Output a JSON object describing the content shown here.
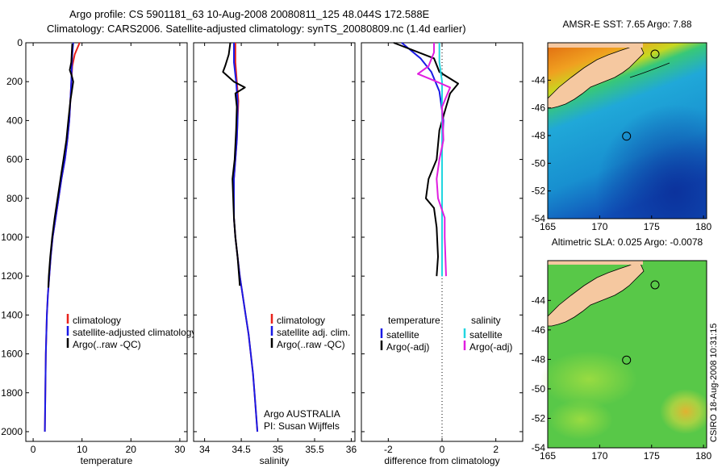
{
  "header": {
    "title_line1": "Argo profile: CS 5901181_63 10-Aug-2008 20080811_125 48.044S 172.588E",
    "title_line2": "Climatology: CARS2006. Satellite-adjusted climatology: synTS_20080809.nc (1.4d earlier)"
  },
  "credit": {
    "program": "Argo AUSTRALIA",
    "pi": "PI: Susan Wijffels",
    "stamp": "CSIRO 18-Aug-2008 10:31:15"
  },
  "colors": {
    "climatology": "#e8231c",
    "satellite": "#1a1ae6",
    "argo": "#000000",
    "salinity_satellite": "#22d6e0",
    "salinity_argo": "#e01ee0"
  },
  "chart_data": [
    {
      "type": "line",
      "id": "temperature",
      "xlabel": "temperature",
      "ylabel": "",
      "xlim": [
        -1.5,
        31.5
      ],
      "ylim": [
        2050,
        0
      ],
      "xticks": [
        0,
        10,
        20,
        30
      ],
      "yticks": [
        0,
        200,
        400,
        600,
        800,
        1000,
        1200,
        1400,
        1600,
        1800,
        2000
      ],
      "legend": [
        "climatology",
        "satellite-adjusted climatology",
        "Argo(..raw -QC)"
      ],
      "series": [
        {
          "name": "climatology",
          "color_key": "climatology",
          "points": [
            [
              9.5,
              0
            ],
            [
              8.5,
              60
            ],
            [
              8.0,
              120
            ],
            [
              7.8,
              200
            ],
            [
              7.6,
              300
            ],
            [
              7.4,
              400
            ],
            [
              7.0,
              500
            ],
            [
              6.5,
              600
            ],
            [
              5.8,
              700
            ],
            [
              5.2,
              800
            ],
            [
              4.6,
              900
            ],
            [
              4.0,
              1000
            ],
            [
              3.6,
              1100
            ],
            [
              3.3,
              1200
            ],
            [
              3.0,
              1300
            ],
            [
              2.8,
              1400
            ],
            [
              2.6,
              1600
            ],
            [
              2.5,
              1800
            ],
            [
              2.4,
              2000
            ]
          ]
        },
        {
          "name": "satellite-adjusted climatology",
          "color_key": "satellite",
          "points": [
            [
              8.2,
              0
            ],
            [
              8.0,
              60
            ],
            [
              7.9,
              120
            ],
            [
              7.8,
              200
            ],
            [
              7.6,
              300
            ],
            [
              7.4,
              400
            ],
            [
              7.0,
              500
            ],
            [
              6.5,
              600
            ],
            [
              5.8,
              700
            ],
            [
              5.2,
              800
            ],
            [
              4.6,
              900
            ],
            [
              4.0,
              1000
            ],
            [
              3.6,
              1100
            ],
            [
              3.3,
              1200
            ],
            [
              3.0,
              1300
            ],
            [
              2.8,
              1400
            ],
            [
              2.6,
              1600
            ],
            [
              2.5,
              1800
            ],
            [
              2.4,
              2000
            ]
          ]
        },
        {
          "name": "Argo(..raw -QC)",
          "color_key": "argo",
          "points": [
            [
              8.0,
              5
            ],
            [
              7.9,
              50
            ],
            [
              7.8,
              100
            ],
            [
              7.5,
              140
            ],
            [
              7.9,
              170
            ],
            [
              8.2,
              200
            ],
            [
              7.6,
              300
            ],
            [
              7.2,
              400
            ],
            [
              6.8,
              500
            ],
            [
              6.2,
              600
            ],
            [
              5.6,
              700
            ],
            [
              5.0,
              800
            ],
            [
              4.4,
              900
            ],
            [
              3.9,
              1000
            ],
            [
              3.5,
              1100
            ],
            [
              3.2,
              1200
            ],
            [
              3.1,
              1260
            ]
          ]
        }
      ]
    },
    {
      "type": "line",
      "id": "salinity",
      "xlabel": "salinity",
      "ylabel": "",
      "xlim": [
        33.85,
        36.05
      ],
      "ylim": [
        2050,
        0
      ],
      "xticks": [
        34,
        34.5,
        35,
        35.5,
        36
      ],
      "legend": [
        "climatology",
        "satellite adj. clim.",
        "Argo(..raw -QC)"
      ],
      "series": [
        {
          "name": "climatology",
          "color_key": "climatology",
          "points": [
            [
              34.42,
              0
            ],
            [
              34.42,
              100
            ],
            [
              34.44,
              200
            ],
            [
              34.46,
              300
            ],
            [
              34.45,
              400
            ],
            [
              34.44,
              500
            ],
            [
              34.42,
              600
            ],
            [
              34.4,
              700
            ],
            [
              34.4,
              800
            ],
            [
              34.4,
              900
            ],
            [
              34.42,
              1000
            ],
            [
              34.45,
              1100
            ],
            [
              34.48,
              1200
            ],
            [
              34.52,
              1300
            ],
            [
              34.56,
              1400
            ],
            [
              34.6,
              1500
            ],
            [
              34.63,
              1600
            ],
            [
              34.66,
              1700
            ],
            [
              34.68,
              1800
            ],
            [
              34.7,
              1900
            ],
            [
              34.72,
              2000
            ]
          ]
        },
        {
          "name": "satellite adj. clim.",
          "color_key": "satellite",
          "points": [
            [
              34.4,
              0
            ],
            [
              34.4,
              100
            ],
            [
              34.43,
              200
            ],
            [
              34.45,
              300
            ],
            [
              34.45,
              400
            ],
            [
              34.44,
              500
            ],
            [
              34.42,
              600
            ],
            [
              34.4,
              700
            ],
            [
              34.4,
              800
            ],
            [
              34.4,
              900
            ],
            [
              34.42,
              1000
            ],
            [
              34.45,
              1100
            ],
            [
              34.48,
              1200
            ],
            [
              34.52,
              1300
            ],
            [
              34.56,
              1400
            ],
            [
              34.6,
              1500
            ],
            [
              34.63,
              1600
            ],
            [
              34.66,
              1700
            ],
            [
              34.68,
              1800
            ],
            [
              34.7,
              1900
            ],
            [
              34.72,
              2000
            ]
          ]
        },
        {
          "name": "Argo(..raw -QC)",
          "color_key": "argo",
          "points": [
            [
              34.35,
              0
            ],
            [
              34.33,
              60
            ],
            [
              34.28,
              120
            ],
            [
              34.25,
              150
            ],
            [
              34.4,
              200
            ],
            [
              34.55,
              230
            ],
            [
              34.42,
              260
            ],
            [
              34.44,
              330
            ],
            [
              34.43,
              450
            ],
            [
              34.41,
              600
            ],
            [
              34.38,
              700
            ],
            [
              34.39,
              800
            ],
            [
              34.4,
              900
            ],
            [
              34.42,
              1000
            ],
            [
              34.45,
              1100
            ],
            [
              34.47,
              1200
            ],
            [
              34.48,
              1250
            ]
          ]
        }
      ]
    },
    {
      "type": "line",
      "id": "difference",
      "xlabel": "difference from climatology",
      "ylabel": "",
      "xlim": [
        -3.0,
        3.0
      ],
      "ylim": [
        2050,
        0
      ],
      "xticks": [
        -2,
        0,
        2
      ],
      "legend": [
        "temperature",
        "satellite",
        "Argo(-adj)",
        "salinity",
        "satellite",
        "Argo(-adj)"
      ],
      "series": [
        {
          "name": "temperature satellite",
          "color_key": "satellite",
          "points": [
            [
              -1.5,
              0
            ],
            [
              -0.8,
              80
            ],
            [
              -0.4,
              150
            ],
            [
              -0.1,
              250
            ],
            [
              0.05,
              400
            ],
            [
              0.0,
              550
            ],
            [
              0.0,
              800
            ],
            [
              0.0,
              1100
            ],
            [
              0.0,
              1200
            ]
          ]
        },
        {
          "name": "temperature Argo(-adj)",
          "color_key": "argo",
          "points": [
            [
              -1.8,
              0
            ],
            [
              -0.3,
              80
            ],
            [
              -0.1,
              150
            ],
            [
              0.6,
              210
            ],
            [
              0.3,
              260
            ],
            [
              0.15,
              330
            ],
            [
              -0.1,
              450
            ],
            [
              -0.2,
              600
            ],
            [
              -0.5,
              700
            ],
            [
              -0.6,
              800
            ],
            [
              -0.3,
              850
            ],
            [
              -0.2,
              950
            ],
            [
              -0.15,
              1100
            ],
            [
              -0.2,
              1200
            ]
          ]
        },
        {
          "name": "salinity satellite",
          "color_key": "salinity_satellite",
          "points": [
            [
              -0.1,
              0
            ],
            [
              -0.1,
              100
            ],
            [
              0.0,
              200
            ],
            [
              0.0,
              400
            ],
            [
              0.0,
              600
            ],
            [
              0.0,
              900
            ],
            [
              0.0,
              1200
            ]
          ]
        },
        {
          "name": "salinity Argo(-adj)",
          "color_key": "salinity_argo",
          "points": [
            [
              -0.3,
              0
            ],
            [
              -0.3,
              50
            ],
            [
              -0.5,
              120
            ],
            [
              -0.9,
              160
            ],
            [
              -0.2,
              200
            ],
            [
              0.3,
              230
            ],
            [
              0.0,
              330
            ],
            [
              0.05,
              500
            ],
            [
              -0.1,
              600
            ],
            [
              -0.2,
              700
            ],
            [
              -0.15,
              800
            ],
            [
              0.1,
              900
            ],
            [
              0.1,
              1000
            ],
            [
              0.15,
              1200
            ]
          ]
        }
      ]
    },
    {
      "type": "heatmap",
      "id": "sst",
      "title": "AMSR-E SST: 7.65 Argo: 7.88",
      "xlim": [
        165,
        180.3
      ],
      "ylim": [
        -54,
        -41.3
      ],
      "xticks": [
        165,
        170,
        175,
        180
      ],
      "yticks": [
        -44,
        -46,
        -48,
        -50,
        -52,
        -54
      ],
      "argo_position": [
        172.588,
        -48.044
      ]
    },
    {
      "type": "heatmap",
      "id": "sla",
      "title": "Altimetric SLA: 0.025 Argo: -0.0078",
      "xlim": [
        165,
        180.3
      ],
      "ylim": [
        -54,
        -41.3
      ],
      "xticks": [
        165,
        170,
        175,
        180
      ],
      "yticks": [
        -44,
        -46,
        -48,
        -50,
        -52,
        -54
      ],
      "argo_position": [
        172.588,
        -48.044
      ]
    }
  ]
}
